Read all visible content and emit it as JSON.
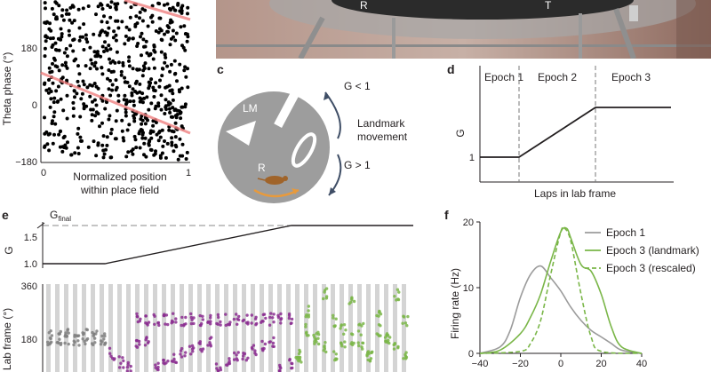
{
  "panels": {
    "c": "c",
    "d": "d",
    "e": "e",
    "f": "f"
  },
  "panel_a": {
    "ylabel": "Theta phase (°)",
    "yticks": [
      "180",
      "0",
      "−180"
    ],
    "xticks": [
      "0",
      "1"
    ],
    "xlabel_line1": "Normalized position",
    "xlabel_line2": "within place field",
    "point_color": "#000000",
    "fit_color": "#f08080"
  },
  "photo": {
    "labels": [
      "R",
      "T"
    ]
  },
  "panel_c": {
    "lm_label": "LM",
    "r_label": "R",
    "g_less": "G < 1",
    "g_more": "G > 1",
    "movement_line1": "Landmark",
    "movement_line2": "movement",
    "disk_color": "#9d9d9d",
    "arrow_color": "#3f4e66",
    "rat_color": "#a0642a",
    "track_arrow_color": "#e89a3c"
  },
  "panel_d": {
    "epochs": [
      "Epoch 1",
      "Epoch 2",
      "Epoch 3"
    ],
    "ylabel": "G",
    "ytick": "1",
    "xlabel": "Laps in lab frame"
  },
  "panel_e": {
    "g_final_base": "G",
    "g_final_sub": "final",
    "ylabel_top": "G",
    "yticks_top": [
      "1.5",
      "1.0"
    ],
    "ylabel_bottom": "Lab frame (°)",
    "yticks_bottom": [
      "360",
      "180"
    ],
    "epoch_colors": [
      "#7f7f7f",
      "#8a2c8f",
      "#7ab648"
    ]
  },
  "chart_data": {
    "type": "line",
    "xlabel": "",
    "ylabel": "Firing rate (Hz)",
    "xlim": [
      -40,
      40
    ],
    "ylim": [
      0,
      20
    ],
    "xticks": [
      "−40",
      "−20",
      "0",
      "20",
      "40"
    ],
    "yticks": [
      "0",
      "10",
      "20"
    ],
    "legend_position": "top-right",
    "series": [
      {
        "name": "Epoch 1",
        "color": "#9b9b9b",
        "dash": "solid",
        "x": [
          -40,
          -30,
          -25,
          -20,
          -15,
          -10,
          -5,
          0,
          5,
          10,
          15,
          20,
          25,
          30,
          40
        ],
        "y": [
          0,
          1.0,
          3.5,
          8.5,
          12.0,
          13.3,
          11.5,
          9.5,
          7.0,
          5.0,
          3.5,
          2.5,
          1.5,
          0.5,
          0
        ]
      },
      {
        "name": "Epoch 3 (landmark)",
        "color": "#7ab648",
        "dash": "solid",
        "x": [
          -40,
          -30,
          -20,
          -15,
          -10,
          -5,
          0,
          3,
          5,
          10,
          15,
          20,
          25,
          30,
          40
        ],
        "y": [
          0,
          0.5,
          3.0,
          5.5,
          9.0,
          14.0,
          18.5,
          19.0,
          17.5,
          13.5,
          12.5,
          9.0,
          4.0,
          1.0,
          0
        ]
      },
      {
        "name": "Epoch 3 (rescaled)",
        "color": "#7ab648",
        "dash": "dashed",
        "x": [
          -40,
          -20,
          -15,
          -10,
          -5,
          0,
          2,
          5,
          10,
          15,
          20,
          40
        ],
        "y": [
          0,
          0.3,
          1.5,
          5.0,
          12.0,
          18.5,
          19.0,
          17.0,
          9.0,
          2.5,
          0.3,
          0
        ]
      }
    ]
  }
}
